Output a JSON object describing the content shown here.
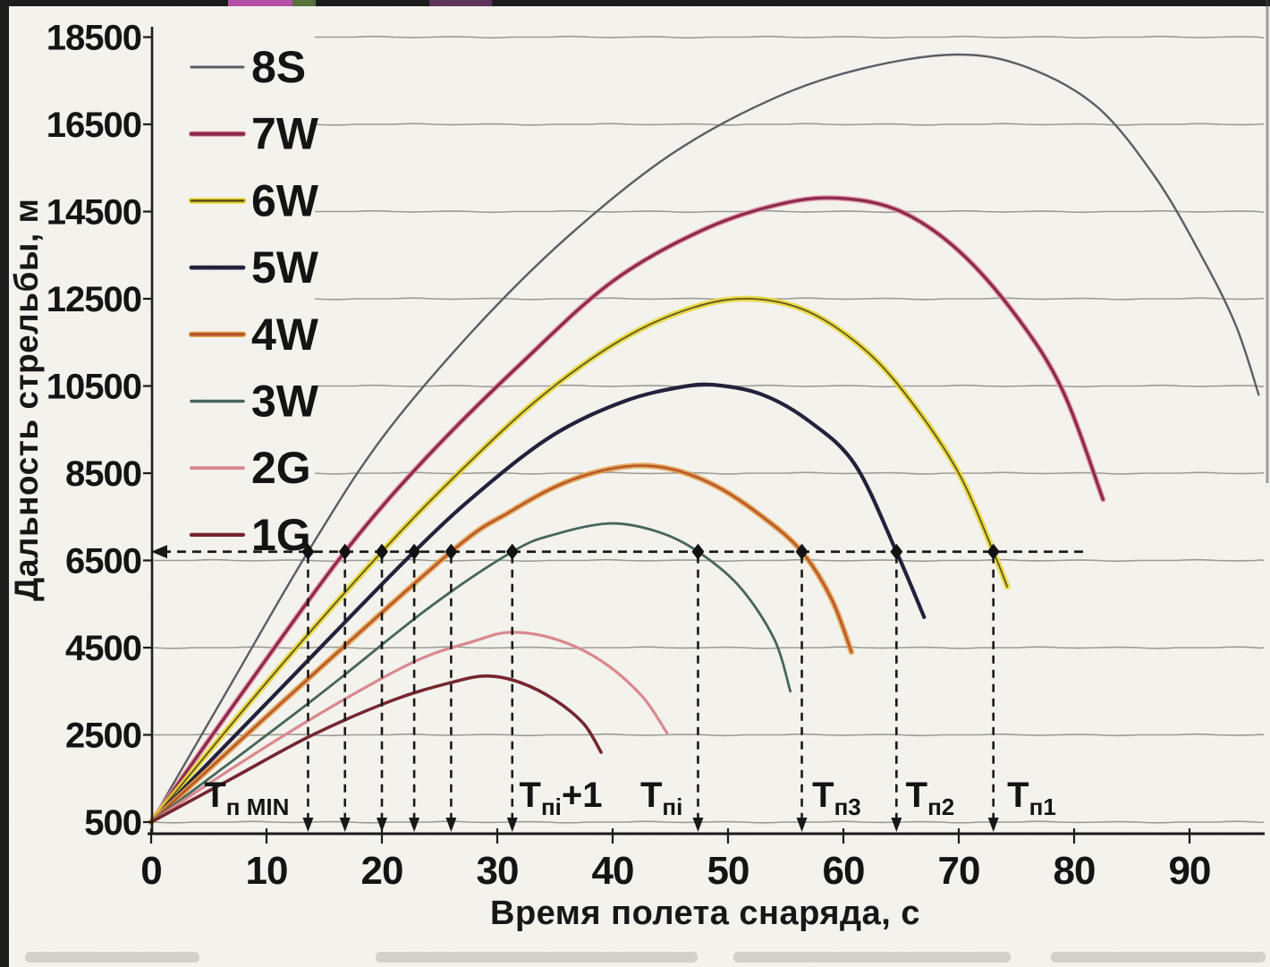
{
  "chart_data": {
    "type": "line",
    "title": "",
    "xlabel": "Время полета снаряда, с",
    "ylabel": "Дальность стрельбы, м",
    "xlim": [
      0,
      98
    ],
    "ylim": [
      500,
      19000
    ],
    "x_ticks": [
      0,
      10,
      20,
      30,
      40,
      50,
      60,
      70,
      80,
      90
    ],
    "y_ticks": [
      500,
      2500,
      4500,
      6500,
      8500,
      10500,
      12500,
      14500,
      16500,
      18500
    ],
    "grid": "horizontal-wavy",
    "legend_position": "upper-left",
    "series": [
      {
        "name": "8S",
        "color": "#5d5d64",
        "halo": null,
        "halo_width": 0,
        "width": 2.4,
        "points": [
          [
            0,
            500
          ],
          [
            7,
            3700
          ],
          [
            13.6,
            6700
          ],
          [
            20,
            9300
          ],
          [
            28,
            11800
          ],
          [
            36,
            13900
          ],
          [
            45,
            15800
          ],
          [
            54,
            17100
          ],
          [
            62,
            17800
          ],
          [
            70,
            18100
          ],
          [
            76,
            17800
          ],
          [
            82,
            16900
          ],
          [
            87,
            15300
          ],
          [
            91,
            13500
          ],
          [
            94,
            11900
          ],
          [
            96,
            10300
          ]
        ]
      },
      {
        "name": "7W",
        "color": "#8c2a4a",
        "halo": "#e08fa5",
        "halo_width": 6,
        "width": 3.2,
        "points": [
          [
            0,
            500
          ],
          [
            8,
            3500
          ],
          [
            16.8,
            6700
          ],
          [
            24,
            8900
          ],
          [
            32,
            11000
          ],
          [
            40,
            12900
          ],
          [
            48,
            14100
          ],
          [
            55,
            14700
          ],
          [
            60,
            14800
          ],
          [
            65,
            14500
          ],
          [
            70,
            13600
          ],
          [
            75,
            12100
          ],
          [
            79,
            10400
          ],
          [
            82.5,
            7900
          ]
        ]
      },
      {
        "name": "6W",
        "color": "#665518",
        "halo": "#e6d83a",
        "halo_width": 6.6,
        "width": 1.8,
        "points": [
          [
            0,
            500
          ],
          [
            10,
            3700
          ],
          [
            20,
            6700
          ],
          [
            27,
            8600
          ],
          [
            34,
            10300
          ],
          [
            41,
            11600
          ],
          [
            47,
            12300
          ],
          [
            52,
            12500
          ],
          [
            57,
            12200
          ],
          [
            62,
            11300
          ],
          [
            66,
            10100
          ],
          [
            70,
            8500
          ],
          [
            73,
            6700
          ],
          [
            74.2,
            5900
          ]
        ]
      },
      {
        "name": "5W",
        "color": "#22223c",
        "halo": null,
        "halo_width": 0,
        "width": 4.2,
        "points": [
          [
            0,
            500
          ],
          [
            11,
            3500
          ],
          [
            22.8,
            6700
          ],
          [
            29,
            8200
          ],
          [
            35,
            9400
          ],
          [
            41,
            10150
          ],
          [
            46,
            10480
          ],
          [
            49,
            10520
          ],
          [
            53,
            10300
          ],
          [
            57,
            9700
          ],
          [
            61,
            8700
          ],
          [
            64.6,
            6700
          ],
          [
            67,
            5200
          ]
        ]
      },
      {
        "name": "4W",
        "color": "#b4512a",
        "halo": "#e09a42",
        "halo_width": 6.2,
        "width": 2.2,
        "points": [
          [
            0,
            500
          ],
          [
            12,
            3400
          ],
          [
            26,
            6700
          ],
          [
            31,
            7600
          ],
          [
            36,
            8300
          ],
          [
            41,
            8650
          ],
          [
            45,
            8600
          ],
          [
            49,
            8200
          ],
          [
            53,
            7500
          ],
          [
            56.4,
            6700
          ],
          [
            59,
            5600
          ],
          [
            60.7,
            4400
          ]
        ]
      },
      {
        "name": "3W",
        "color": "#47655b",
        "halo": null,
        "halo_width": 0,
        "width": 2.8,
        "points": [
          [
            0,
            500
          ],
          [
            14,
            3300
          ],
          [
            24,
            5400
          ],
          [
            31.3,
            6700
          ],
          [
            35,
            7100
          ],
          [
            39.8,
            7350
          ],
          [
            44,
            7150
          ],
          [
            47.4,
            6700
          ],
          [
            51,
            5900
          ],
          [
            54,
            4700
          ],
          [
            55.4,
            3500
          ]
        ]
      },
      {
        "name": "2G",
        "color": "#d9898e",
        "halo": null,
        "halo_width": 0,
        "width": 3.2,
        "points": [
          [
            0,
            500
          ],
          [
            8,
            1900
          ],
          [
            16,
            3200
          ],
          [
            23,
            4200
          ],
          [
            28,
            4650
          ],
          [
            31.1,
            4850
          ],
          [
            35,
            4700
          ],
          [
            39,
            4200
          ],
          [
            42.5,
            3400
          ],
          [
            44.7,
            2550
          ]
        ]
      },
      {
        "name": "1G",
        "color": "#76262f",
        "halo": null,
        "halo_width": 0,
        "width": 3.6,
        "points": [
          [
            0,
            500
          ],
          [
            7,
            1500
          ],
          [
            14,
            2500
          ],
          [
            21,
            3300
          ],
          [
            26,
            3700
          ],
          [
            29.1,
            3850
          ],
          [
            32,
            3700
          ],
          [
            35,
            3300
          ],
          [
            37.5,
            2750
          ],
          [
            39,
            2100
          ]
        ]
      }
    ],
    "reference": {
      "horizontal_value": 6700,
      "drop_times": [
        13.6,
        16.8,
        20.0,
        22.8,
        26.0,
        31.3,
        47.4,
        56.4,
        64.6,
        73.0
      ]
    },
    "annotations": [
      {
        "t": 4.6,
        "parts": [
          {
            "text": "T",
            "sub": false
          },
          {
            "text": "п MIN",
            "sub": true
          }
        ]
      },
      {
        "t": 31.9,
        "parts": [
          {
            "text": "T",
            "sub": false
          },
          {
            "text": "пi",
            "sub": true
          },
          {
            "text": "+1",
            "sub": false
          }
        ]
      },
      {
        "t": 42.4,
        "parts": [
          {
            "text": "T",
            "sub": false
          },
          {
            "text": "пi",
            "sub": true
          }
        ]
      },
      {
        "t": 57.3,
        "parts": [
          {
            "text": "T",
            "sub": false
          },
          {
            "text": "п3",
            "sub": true
          }
        ]
      },
      {
        "t": 65.4,
        "parts": [
          {
            "text": "T",
            "sub": false
          },
          {
            "text": "п2",
            "sub": true
          }
        ]
      },
      {
        "t": 74.2,
        "parts": [
          {
            "text": "T",
            "sub": false
          },
          {
            "text": "п1",
            "sub": true
          }
        ]
      }
    ]
  }
}
